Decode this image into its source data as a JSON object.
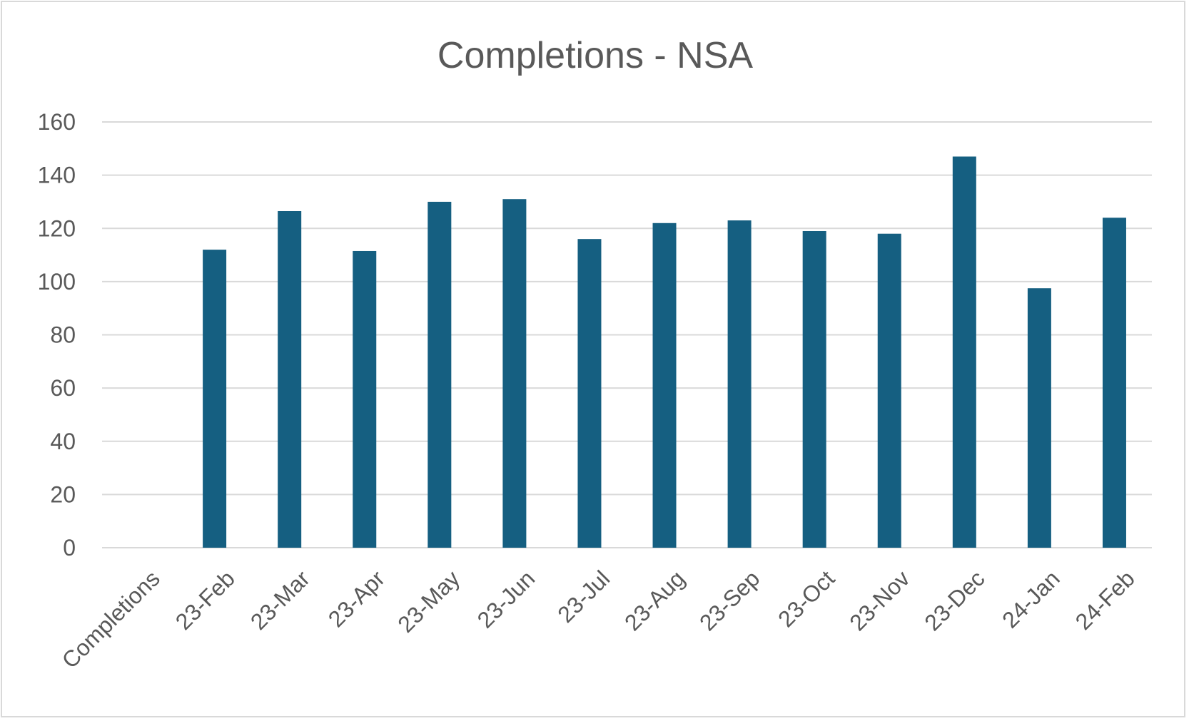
{
  "chart_data": {
    "type": "bar",
    "title": "Completions - NSA",
    "xlabel": "",
    "ylabel": "",
    "categories": [
      "Completions",
      "23-Feb",
      "23-Mar",
      "23-Apr",
      "23-May",
      "23-Jun",
      "23-Jul",
      "23-Aug",
      "23-Sep",
      "23-Oct",
      "23-Nov",
      "23-Dec",
      "24-Jan",
      "24-Feb"
    ],
    "values": [
      null,
      112,
      126.5,
      111.5,
      130,
      131,
      116,
      122,
      123,
      119,
      118,
      147,
      97.5,
      124
    ],
    "ylim": [
      0,
      160
    ],
    "yticks": [
      0,
      20,
      40,
      60,
      80,
      100,
      120,
      140,
      160
    ],
    "grid": true,
    "legend": "none",
    "colors": {
      "bar": "#155f81",
      "grid": "#d9d9d9",
      "text": "#595959"
    }
  }
}
